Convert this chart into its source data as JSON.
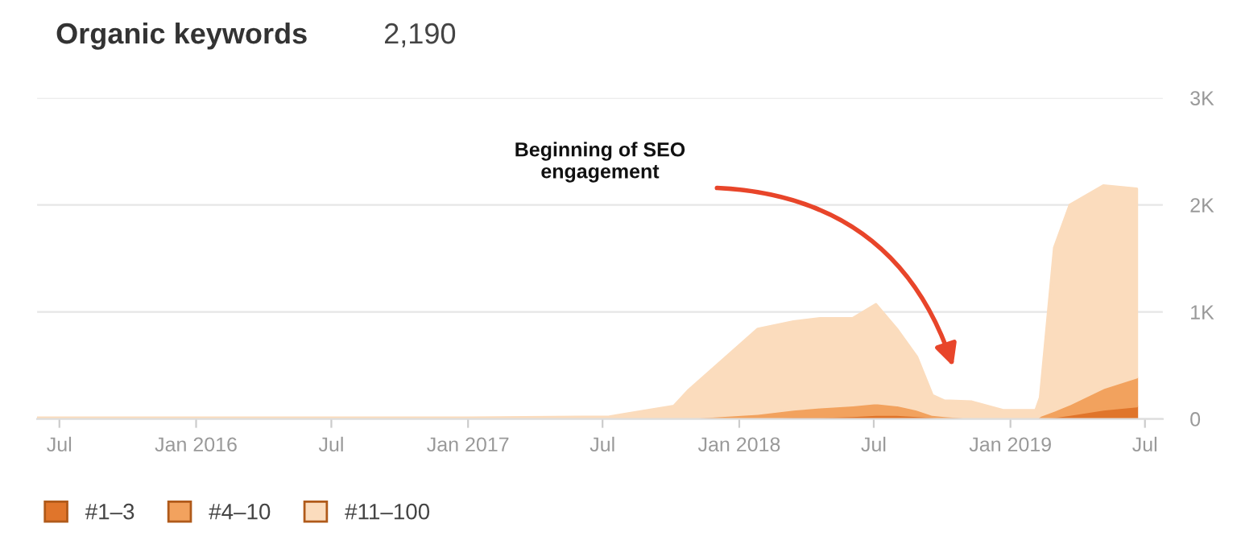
{
  "chart_data": {
    "type": "area",
    "title": "Organic keywords",
    "subtitle": "2,190",
    "stacked": true,
    "x": [
      "2015-06-01",
      "2017-01-01",
      "2017-07-10",
      "2017-10-05",
      "2017-10-25",
      "2018-01-26",
      "2018-03-15",
      "2018-04-20",
      "2018-06-03",
      "2018-07-04",
      "2018-08-01",
      "2018-08-28",
      "2018-09-18",
      "2018-10-04",
      "2018-11-10",
      "2018-12-22",
      "2019-02-04",
      "2019-02-10",
      "2019-03-01",
      "2019-03-22",
      "2019-05-06",
      "2019-06-20"
    ],
    "series": [
      {
        "name": "#1–3",
        "color": "#e0752b",
        "values": [
          0,
          0,
          0,
          0,
          0,
          10,
          20,
          20,
          30,
          40,
          40,
          30,
          20,
          10,
          0,
          0,
          0,
          10,
          20,
          40,
          90,
          120
        ]
      },
      {
        "name": "#4–10",
        "color": "#f2a25e",
        "values": [
          0,
          0,
          0,
          0,
          10,
          40,
          70,
          90,
          100,
          110,
          90,
          60,
          20,
          20,
          10,
          0,
          0,
          20,
          60,
          100,
          200,
          270
        ]
      },
      {
        "name": "#11–100",
        "color": "#fbdcbd",
        "values": [
          10,
          10,
          20,
          120,
          260,
          790,
          820,
          830,
          810,
          920,
          710,
          490,
          180,
          140,
          150,
          80,
          80,
          170,
          1520,
          1860,
          1890,
          1760
        ]
      }
    ],
    "xlim": [
      "2015-06-01",
      "2019-07-25"
    ],
    "xticks": [
      {
        "value": "2015-07-01",
        "label": "Jul"
      },
      {
        "value": "2016-01-01",
        "label": "Jan 2016"
      },
      {
        "value": "2016-07-01",
        "label": "Jul"
      },
      {
        "value": "2017-01-01",
        "label": "Jan 2017"
      },
      {
        "value": "2017-07-01",
        "label": "Jul"
      },
      {
        "value": "2018-01-01",
        "label": "Jan 2018"
      },
      {
        "value": "2018-07-01",
        "label": "Jul"
      },
      {
        "value": "2019-01-01",
        "label": "Jan 2019"
      },
      {
        "value": "2019-07-01",
        "label": "Jul"
      }
    ],
    "ylim": [
      0,
      3000
    ],
    "yticks": [
      0,
      {
        "value": 1000,
        "label": "1K"
      },
      {
        "value": 2000,
        "label": "2K"
      },
      {
        "value": 3000,
        "label": "3K"
      }
    ],
    "grid": "y",
    "legend": "bottom left",
    "annotations": [
      "Beginning of SEO\nengagement"
    ]
  }
}
